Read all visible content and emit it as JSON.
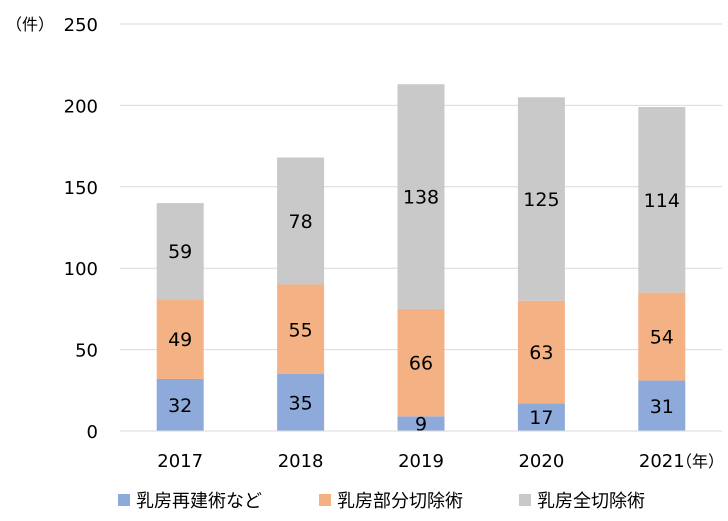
{
  "chart_data": {
    "type": "bar",
    "stacked": true,
    "categories": [
      "2017",
      "2018",
      "2019",
      "2020",
      "2021"
    ],
    "series": [
      {
        "name": "乳房再建術など",
        "values": [
          32,
          35,
          9,
          17,
          31
        ],
        "color": "#8eaadb"
      },
      {
        "name": "乳房部分切除術",
        "values": [
          49,
          55,
          66,
          63,
          54
        ],
        "color": "#f4b183"
      },
      {
        "name": "乳房全切除術",
        "values": [
          59,
          78,
          138,
          125,
          114
        ],
        "color": "#c9c9c9"
      }
    ],
    "y_unit": "（件）",
    "x_unit": "（年）",
    "ylim": [
      0,
      250
    ],
    "yticks": [
      0,
      50,
      100,
      150,
      200,
      250
    ],
    "grid": true,
    "legend": "bottom"
  }
}
